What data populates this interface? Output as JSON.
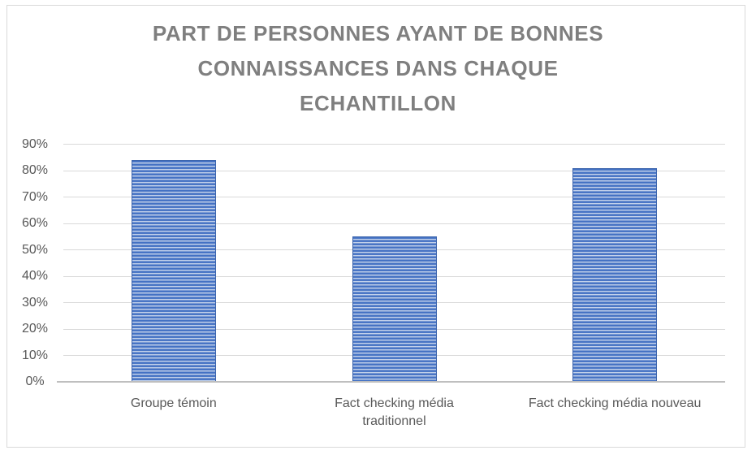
{
  "chart_data": {
    "type": "bar",
    "title": "PART DE PERSONNES AYANT DE BONNES CONNAISSANCES DANS CHAQUE ECHANTILLON",
    "title_lines": [
      "PART DE PERSONNES AYANT DE BONNES",
      "CONNAISSANCES DANS CHAQUE",
      "ECHANTILLON"
    ],
    "categories": [
      "Groupe témoin",
      "Fact checking média traditionnel",
      "Fact checking média nouveau"
    ],
    "values": [
      84,
      55,
      81
    ],
    "value_unit": "%",
    "xlabel": "",
    "ylabel": "",
    "ylim": [
      0,
      90
    ],
    "ytick_step": 10,
    "yticks": [
      0,
      10,
      20,
      30,
      40,
      50,
      60,
      70,
      80,
      90
    ],
    "ytick_labels": [
      "0%",
      "10%",
      "20%",
      "30%",
      "40%",
      "50%",
      "60%",
      "70%",
      "80%",
      "90%"
    ],
    "grid": true,
    "legend_position": "none"
  },
  "colors": {
    "background": "#FFFFFF",
    "frame_border": "#D9D9D9",
    "title": "#7F7F7F",
    "gridline": "#D9D9D9",
    "axis_line": "#BFBFBF",
    "tick_label": "#595959",
    "category_label": "#595959",
    "bar_primary": "#4472C4",
    "bar_stripe_mid": "#93ACD9",
    "bar_stripe_light": "#EDF2FA",
    "bar_border": "#3D65AD"
  }
}
